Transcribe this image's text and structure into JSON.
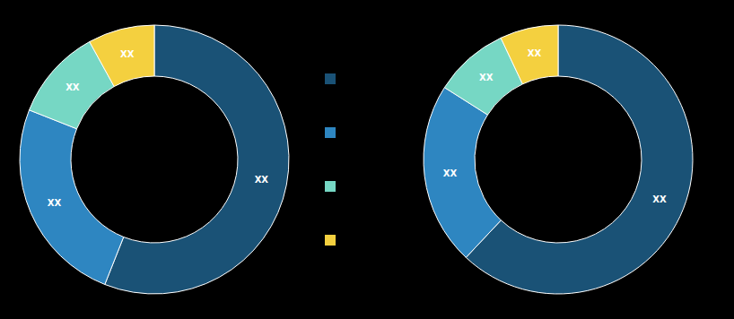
{
  "chart_data": [
    {
      "type": "pie",
      "values": [
        56,
        25,
        11,
        8
      ],
      "colors": [
        "#1a5276",
        "#2e86c1",
        "#76d7c4",
        "#f4d03f"
      ],
      "data_labels": true,
      "value_labels": [
        "XX",
        "XX",
        "XX",
        "XX"
      ],
      "legend": "right"
    },
    {
      "type": "pie",
      "values": [
        62,
        22,
        9,
        7
      ],
      "colors": [
        "#1a5276",
        "#2e86c1",
        "#76d7c4",
        "#f4d03f"
      ],
      "data_labels": true,
      "value_labels": [
        "XX",
        "XX",
        "XX",
        "XX"
      ]
    }
  ]
}
